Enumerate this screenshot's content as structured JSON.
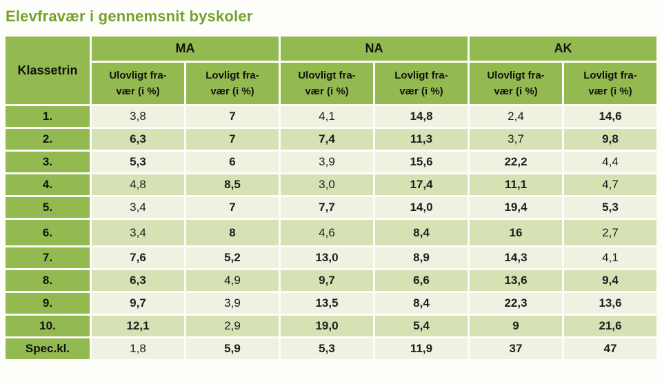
{
  "title": "Elevfravær i gennemsnit byskoler",
  "colors": {
    "title_green": "#75A22D",
    "header_green": "#93BA50",
    "row_light": "#EFF2E1",
    "row_alt": "#D6E2B4",
    "text": "#1d1d1d"
  },
  "table": {
    "row_header_label": "Klassetrin",
    "groups": [
      "MA",
      "NA",
      "AK"
    ],
    "subcolumns": [
      {
        "line1": "Ulovligt fra-",
        "line2": "vær (i %)"
      },
      {
        "line1": "Lovligt fra-",
        "line2": "vær (i %)"
      }
    ],
    "rows": [
      {
        "label": "1.",
        "tall": false,
        "cells": [
          {
            "value": "3,8",
            "bold": false
          },
          {
            "value": "7",
            "bold": true
          },
          {
            "value": "4,1",
            "bold": false
          },
          {
            "value": "14,8",
            "bold": true
          },
          {
            "value": "2,4",
            "bold": false
          },
          {
            "value": "14,6",
            "bold": true
          }
        ]
      },
      {
        "label": "2.",
        "tall": false,
        "cells": [
          {
            "value": "6,3",
            "bold": true
          },
          {
            "value": "7",
            "bold": true
          },
          {
            "value": "7,4",
            "bold": true
          },
          {
            "value": "11,3",
            "bold": true
          },
          {
            "value": "3,7",
            "bold": false
          },
          {
            "value": "9,8",
            "bold": true
          }
        ]
      },
      {
        "label": "3.",
        "tall": false,
        "cells": [
          {
            "value": "5,3",
            "bold": true
          },
          {
            "value": "6",
            "bold": true
          },
          {
            "value": "3,9",
            "bold": false
          },
          {
            "value": "15,6",
            "bold": true
          },
          {
            "value": "22,2",
            "bold": true
          },
          {
            "value": "4,4",
            "bold": false
          }
        ]
      },
      {
        "label": "4.",
        "tall": false,
        "cells": [
          {
            "value": "4,8",
            "bold": false
          },
          {
            "value": "8,5",
            "bold": true
          },
          {
            "value": "3,0",
            "bold": false
          },
          {
            "value": "17,4",
            "bold": true
          },
          {
            "value": "11,1",
            "bold": true
          },
          {
            "value": "4,7",
            "bold": false
          }
        ]
      },
      {
        "label": "5.",
        "tall": false,
        "cells": [
          {
            "value": "3,4",
            "bold": false
          },
          {
            "value": "7",
            "bold": true
          },
          {
            "value": "7,7",
            "bold": true
          },
          {
            "value": "14,0",
            "bold": true
          },
          {
            "value": "19,4",
            "bold": true
          },
          {
            "value": "5,3",
            "bold": true
          }
        ]
      },
      {
        "label": "6.",
        "tall": true,
        "cells": [
          {
            "value": "3,4",
            "bold": false
          },
          {
            "value": "8",
            "bold": true
          },
          {
            "value": "4,6",
            "bold": false
          },
          {
            "value": "8,4",
            "bold": true
          },
          {
            "value": "16",
            "bold": true
          },
          {
            "value": "2,7",
            "bold": false
          }
        ]
      },
      {
        "label": "7.",
        "tall": false,
        "cells": [
          {
            "value": "7,6",
            "bold": true
          },
          {
            "value": "5,2",
            "bold": true
          },
          {
            "value": "13,0",
            "bold": true
          },
          {
            "value": "8,9",
            "bold": true
          },
          {
            "value": "14,3",
            "bold": true
          },
          {
            "value": "4,1",
            "bold": false
          }
        ]
      },
      {
        "label": "8.",
        "tall": false,
        "cells": [
          {
            "value": "6,3",
            "bold": true
          },
          {
            "value": "4,9",
            "bold": false
          },
          {
            "value": "9,7",
            "bold": true
          },
          {
            "value": "6,6",
            "bold": true
          },
          {
            "value": "13,6",
            "bold": true
          },
          {
            "value": "9,4",
            "bold": true
          }
        ]
      },
      {
        "label": "9.",
        "tall": false,
        "cells": [
          {
            "value": "9,7",
            "bold": true
          },
          {
            "value": "3,9",
            "bold": false
          },
          {
            "value": "13,5",
            "bold": true
          },
          {
            "value": "8,4",
            "bold": true
          },
          {
            "value": "22,3",
            "bold": true
          },
          {
            "value": "13,6",
            "bold": true
          }
        ]
      },
      {
        "label": "10.",
        "tall": false,
        "cells": [
          {
            "value": "12,1",
            "bold": true
          },
          {
            "value": "2,9",
            "bold": false
          },
          {
            "value": "19,0",
            "bold": true
          },
          {
            "value": "5,4",
            "bold": true
          },
          {
            "value": "9",
            "bold": true
          },
          {
            "value": "21,6",
            "bold": true
          }
        ]
      },
      {
        "label": "Spec.kl.",
        "tall": false,
        "cells": [
          {
            "value": "1,8",
            "bold": false
          },
          {
            "value": "5,9",
            "bold": true
          },
          {
            "value": "5,3",
            "bold": true
          },
          {
            "value": "11,9",
            "bold": true
          },
          {
            "value": "37",
            "bold": true
          },
          {
            "value": "47",
            "bold": true
          }
        ]
      }
    ]
  },
  "chart_data": {
    "type": "table",
    "title": "Elevfravær i gennemsnit byskoler",
    "column_groups": [
      "MA",
      "NA",
      "AK"
    ],
    "columns": [
      "Klassetrin",
      "MA Ulovligt fravær (i %)",
      "MA Lovligt fravær (i %)",
      "NA Ulovligt fravær (i %)",
      "NA Lovligt fravær (i %)",
      "AK Ulovligt fravær (i %)",
      "AK Lovligt fravær (i %)"
    ],
    "rows": [
      [
        "1.",
        3.8,
        7,
        4.1,
        14.8,
        2.4,
        14.6
      ],
      [
        "2.",
        6.3,
        7,
        7.4,
        11.3,
        3.7,
        9.8
      ],
      [
        "3.",
        5.3,
        6,
        3.9,
        15.6,
        22.2,
        4.4
      ],
      [
        "4.",
        4.8,
        8.5,
        3.0,
        17.4,
        11.1,
        4.7
      ],
      [
        "5.",
        3.4,
        7,
        7.7,
        14.0,
        19.4,
        5.3
      ],
      [
        "6.",
        3.4,
        8,
        4.6,
        8.4,
        16,
        2.7
      ],
      [
        "7.",
        7.6,
        5.2,
        13.0,
        8.9,
        14.3,
        4.1
      ],
      [
        "8.",
        6.3,
        4.9,
        9.7,
        6.6,
        13.6,
        9.4
      ],
      [
        "9.",
        9.7,
        3.9,
        13.5,
        8.4,
        22.3,
        13.6
      ],
      [
        "10.",
        12.1,
        2.9,
        19.0,
        5.4,
        9,
        21.6
      ],
      [
        "Spec.kl.",
        1.8,
        5.9,
        5.3,
        11.9,
        37,
        47
      ]
    ]
  }
}
